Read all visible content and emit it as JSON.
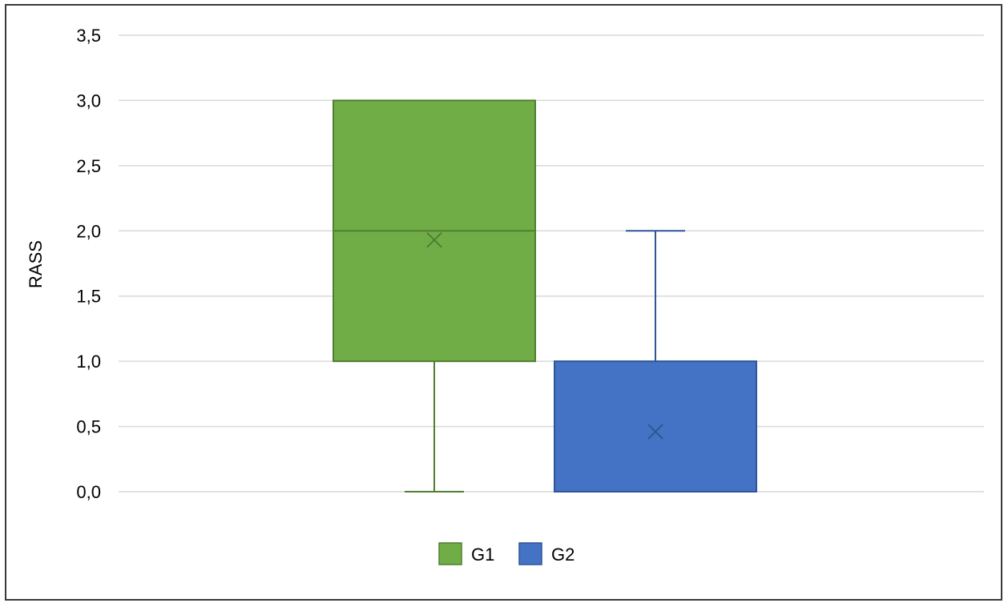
{
  "chart_data": {
    "type": "box",
    "title": "",
    "xlabel": "",
    "ylabel": "RASS",
    "ylim": [
      0,
      3.5
    ],
    "y_ticks": [
      {
        "value": 0.0,
        "label": "0,0"
      },
      {
        "value": 0.5,
        "label": "0,5"
      },
      {
        "value": 1.0,
        "label": "1,0"
      },
      {
        "value": 1.5,
        "label": "1,5"
      },
      {
        "value": 2.0,
        "label": "2,0"
      },
      {
        "value": 2.5,
        "label": "2,5"
      },
      {
        "value": 3.0,
        "label": "3,0"
      },
      {
        "value": 3.5,
        "label": "3,5"
      }
    ],
    "grid": true,
    "legend_position": "bottom-center",
    "series": [
      {
        "name": "G1",
        "color": "#70AD47",
        "edge_color": "#507E32",
        "min": 0.0,
        "q1": 1.0,
        "median": 2.0,
        "q3": 3.0,
        "max": 3.0,
        "mean": 1.93
      },
      {
        "name": "G2",
        "color": "#4472C4",
        "edge_color": "#2F5597",
        "min": 0.0,
        "q1": 0.0,
        "median": 0.0,
        "q3": 1.0,
        "max": 2.0,
        "mean": 0.46
      }
    ]
  }
}
